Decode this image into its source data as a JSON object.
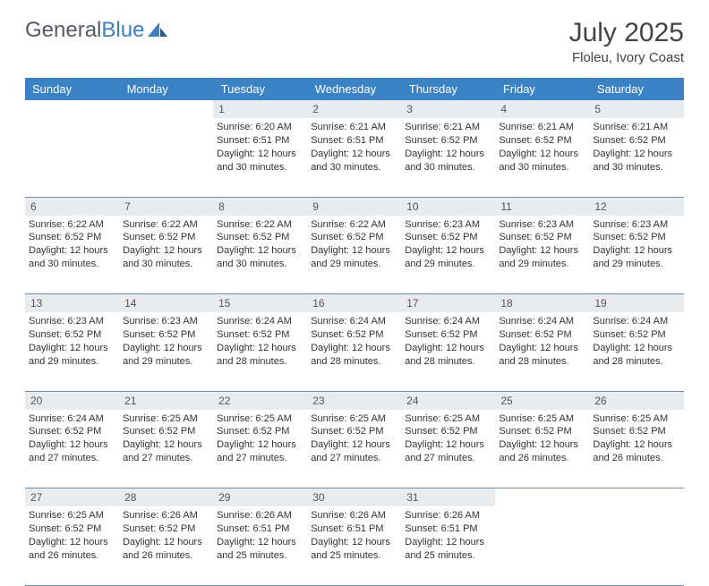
{
  "logo": {
    "text1": "General",
    "text2": "Blue"
  },
  "title": {
    "month": "July 2025",
    "location": "Floleu, Ivory Coast"
  },
  "colors": {
    "header_bg": "#3b82c4",
    "daynum_bg": "#e9ecef",
    "border": "#6a8caf",
    "logo_gray": "#545b62",
    "logo_blue": "#3b7fc4"
  },
  "dayNames": [
    "Sunday",
    "Monday",
    "Tuesday",
    "Wednesday",
    "Thursday",
    "Friday",
    "Saturday"
  ],
  "weeks": [
    [
      {
        "num": "",
        "lines": []
      },
      {
        "num": "",
        "lines": []
      },
      {
        "num": "1",
        "lines": [
          "Sunrise: 6:20 AM",
          "Sunset: 6:51 PM",
          "Daylight: 12 hours",
          "and 30 minutes."
        ]
      },
      {
        "num": "2",
        "lines": [
          "Sunrise: 6:21 AM",
          "Sunset: 6:51 PM",
          "Daylight: 12 hours",
          "and 30 minutes."
        ]
      },
      {
        "num": "3",
        "lines": [
          "Sunrise: 6:21 AM",
          "Sunset: 6:52 PM",
          "Daylight: 12 hours",
          "and 30 minutes."
        ]
      },
      {
        "num": "4",
        "lines": [
          "Sunrise: 6:21 AM",
          "Sunset: 6:52 PM",
          "Daylight: 12 hours",
          "and 30 minutes."
        ]
      },
      {
        "num": "5",
        "lines": [
          "Sunrise: 6:21 AM",
          "Sunset: 6:52 PM",
          "Daylight: 12 hours",
          "and 30 minutes."
        ]
      }
    ],
    [
      {
        "num": "6",
        "lines": [
          "Sunrise: 6:22 AM",
          "Sunset: 6:52 PM",
          "Daylight: 12 hours",
          "and 30 minutes."
        ]
      },
      {
        "num": "7",
        "lines": [
          "Sunrise: 6:22 AM",
          "Sunset: 6:52 PM",
          "Daylight: 12 hours",
          "and 30 minutes."
        ]
      },
      {
        "num": "8",
        "lines": [
          "Sunrise: 6:22 AM",
          "Sunset: 6:52 PM",
          "Daylight: 12 hours",
          "and 30 minutes."
        ]
      },
      {
        "num": "9",
        "lines": [
          "Sunrise: 6:22 AM",
          "Sunset: 6:52 PM",
          "Daylight: 12 hours",
          "and 29 minutes."
        ]
      },
      {
        "num": "10",
        "lines": [
          "Sunrise: 6:23 AM",
          "Sunset: 6:52 PM",
          "Daylight: 12 hours",
          "and 29 minutes."
        ]
      },
      {
        "num": "11",
        "lines": [
          "Sunrise: 6:23 AM",
          "Sunset: 6:52 PM",
          "Daylight: 12 hours",
          "and 29 minutes."
        ]
      },
      {
        "num": "12",
        "lines": [
          "Sunrise: 6:23 AM",
          "Sunset: 6:52 PM",
          "Daylight: 12 hours",
          "and 29 minutes."
        ]
      }
    ],
    [
      {
        "num": "13",
        "lines": [
          "Sunrise: 6:23 AM",
          "Sunset: 6:52 PM",
          "Daylight: 12 hours",
          "and 29 minutes."
        ]
      },
      {
        "num": "14",
        "lines": [
          "Sunrise: 6:23 AM",
          "Sunset: 6:52 PM",
          "Daylight: 12 hours",
          "and 29 minutes."
        ]
      },
      {
        "num": "15",
        "lines": [
          "Sunrise: 6:24 AM",
          "Sunset: 6:52 PM",
          "Daylight: 12 hours",
          "and 28 minutes."
        ]
      },
      {
        "num": "16",
        "lines": [
          "Sunrise: 6:24 AM",
          "Sunset: 6:52 PM",
          "Daylight: 12 hours",
          "and 28 minutes."
        ]
      },
      {
        "num": "17",
        "lines": [
          "Sunrise: 6:24 AM",
          "Sunset: 6:52 PM",
          "Daylight: 12 hours",
          "and 28 minutes."
        ]
      },
      {
        "num": "18",
        "lines": [
          "Sunrise: 6:24 AM",
          "Sunset: 6:52 PM",
          "Daylight: 12 hours",
          "and 28 minutes."
        ]
      },
      {
        "num": "19",
        "lines": [
          "Sunrise: 6:24 AM",
          "Sunset: 6:52 PM",
          "Daylight: 12 hours",
          "and 28 minutes."
        ]
      }
    ],
    [
      {
        "num": "20",
        "lines": [
          "Sunrise: 6:24 AM",
          "Sunset: 6:52 PM",
          "Daylight: 12 hours",
          "and 27 minutes."
        ]
      },
      {
        "num": "21",
        "lines": [
          "Sunrise: 6:25 AM",
          "Sunset: 6:52 PM",
          "Daylight: 12 hours",
          "and 27 minutes."
        ]
      },
      {
        "num": "22",
        "lines": [
          "Sunrise: 6:25 AM",
          "Sunset: 6:52 PM",
          "Daylight: 12 hours",
          "and 27 minutes."
        ]
      },
      {
        "num": "23",
        "lines": [
          "Sunrise: 6:25 AM",
          "Sunset: 6:52 PM",
          "Daylight: 12 hours",
          "and 27 minutes."
        ]
      },
      {
        "num": "24",
        "lines": [
          "Sunrise: 6:25 AM",
          "Sunset: 6:52 PM",
          "Daylight: 12 hours",
          "and 27 minutes."
        ]
      },
      {
        "num": "25",
        "lines": [
          "Sunrise: 6:25 AM",
          "Sunset: 6:52 PM",
          "Daylight: 12 hours",
          "and 26 minutes."
        ]
      },
      {
        "num": "26",
        "lines": [
          "Sunrise: 6:25 AM",
          "Sunset: 6:52 PM",
          "Daylight: 12 hours",
          "and 26 minutes."
        ]
      }
    ],
    [
      {
        "num": "27",
        "lines": [
          "Sunrise: 6:25 AM",
          "Sunset: 6:52 PM",
          "Daylight: 12 hours",
          "and 26 minutes."
        ]
      },
      {
        "num": "28",
        "lines": [
          "Sunrise: 6:26 AM",
          "Sunset: 6:52 PM",
          "Daylight: 12 hours",
          "and 26 minutes."
        ]
      },
      {
        "num": "29",
        "lines": [
          "Sunrise: 6:26 AM",
          "Sunset: 6:51 PM",
          "Daylight: 12 hours",
          "and 25 minutes."
        ]
      },
      {
        "num": "30",
        "lines": [
          "Sunrise: 6:26 AM",
          "Sunset: 6:51 PM",
          "Daylight: 12 hours",
          "and 25 minutes."
        ]
      },
      {
        "num": "31",
        "lines": [
          "Sunrise: 6:26 AM",
          "Sunset: 6:51 PM",
          "Daylight: 12 hours",
          "and 25 minutes."
        ]
      },
      {
        "num": "",
        "lines": []
      },
      {
        "num": "",
        "lines": []
      }
    ]
  ]
}
